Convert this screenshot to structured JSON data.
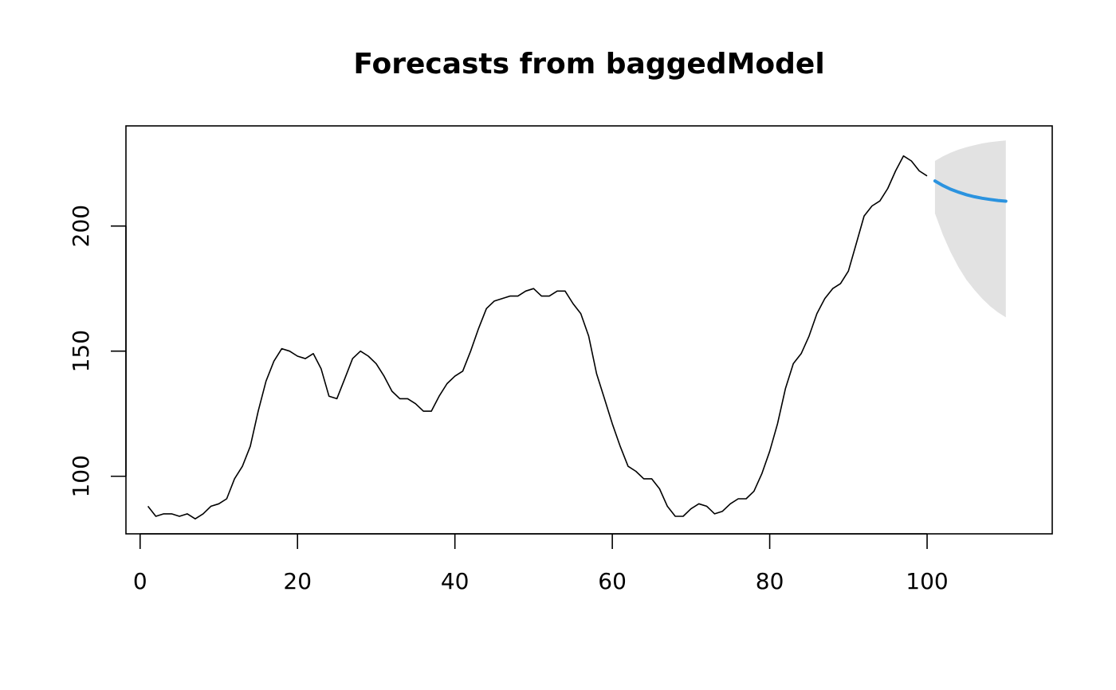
{
  "chart_data": {
    "type": "line",
    "title": "Forecasts from baggedModel",
    "xlabel": "",
    "ylabel": "",
    "xlim": [
      -1.8,
      115.9
    ],
    "ylim": [
      77,
      240
    ],
    "x_ticks": [
      0,
      20,
      40,
      60,
      80,
      100
    ],
    "y_ticks": [
      100,
      150,
      200
    ],
    "grid": false,
    "colors": {
      "history": "#000000",
      "forecast": "#2B93DF",
      "interval": "#E2E2E2"
    },
    "series": [
      {
        "role": "history",
        "x": [
          1,
          2,
          3,
          4,
          5,
          6,
          7,
          8,
          9,
          10,
          11,
          12,
          13,
          14,
          15,
          16,
          17,
          18,
          19,
          20,
          21,
          22,
          23,
          24,
          25,
          26,
          27,
          28,
          29,
          30,
          31,
          32,
          33,
          34,
          35,
          36,
          37,
          38,
          39,
          40,
          41,
          42,
          43,
          44,
          45,
          46,
          47,
          48,
          49,
          50,
          51,
          52,
          53,
          54,
          55,
          56,
          57,
          58,
          59,
          60,
          61,
          62,
          63,
          64,
          65,
          66,
          67,
          68,
          69,
          70,
          71,
          72,
          73,
          74,
          75,
          76,
          77,
          78,
          79,
          80,
          81,
          82,
          83,
          84,
          85,
          86,
          87,
          88,
          89,
          90,
          91,
          92,
          93,
          94,
          95,
          96,
          97,
          98,
          99,
          100
        ],
        "values": [
          88,
          84,
          85,
          85,
          84,
          85,
          83,
          85,
          88,
          89,
          91,
          99,
          104,
          112,
          126,
          138,
          146,
          151,
          150,
          148,
          147,
          149,
          143,
          132,
          131,
          139,
          147,
          150,
          148,
          145,
          140,
          134,
          131,
          131,
          129,
          126,
          126,
          132,
          137,
          140,
          142,
          150,
          159,
          167,
          170,
          171,
          172,
          172,
          174,
          175,
          172,
          172,
          174,
          174,
          169,
          165,
          156,
          141,
          131,
          121,
          112,
          104,
          102,
          99,
          99,
          95,
          88,
          84,
          84,
          87,
          89,
          88,
          85,
          86,
          89,
          91,
          91,
          94,
          101,
          110,
          121,
          135,
          145,
          149,
          156,
          165,
          171,
          175,
          177,
          182,
          193,
          204,
          208,
          210,
          215,
          222,
          228,
          226,
          222,
          220
        ]
      },
      {
        "role": "forecast",
        "x": [
          101,
          102,
          103,
          104,
          105,
          106,
          107,
          108,
          109,
          110
        ],
        "values": [
          218,
          216.2,
          214.7,
          213.5,
          212.5,
          211.7,
          211.1,
          210.6,
          210.2,
          209.9
        ],
        "lower": [
          205,
          196.5,
          189.5,
          183.5,
          178.5,
          174.5,
          171,
          168,
          165.5,
          163.5
        ],
        "upper": [
          226,
          227.8,
          229.3,
          230.5,
          231.5,
          232.3,
          233,
          233.5,
          233.9,
          234.2
        ]
      }
    ]
  }
}
